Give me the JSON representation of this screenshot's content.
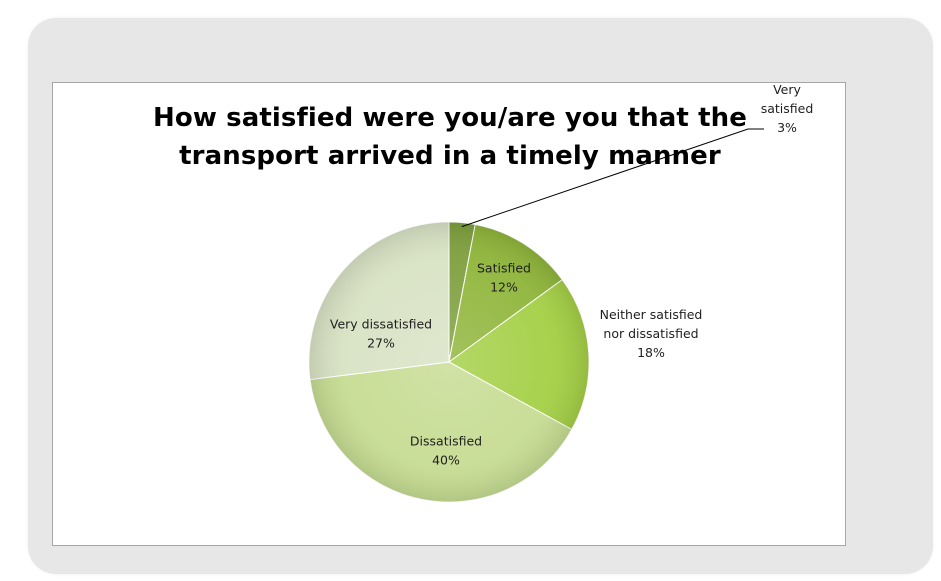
{
  "chart_data": {
    "type": "pie",
    "title": "How satisfied were you/are you that the transport arrived in a timely manner",
    "title_lines": [
      "How satisfied were you/are you that the",
      "transport arrived in a timely manner"
    ],
    "slices": [
      {
        "label": "Very satisfied",
        "label_lines": [
          "Very",
          "satisfied"
        ],
        "value": 3,
        "value_label": "3%",
        "color": "#7e9f3d"
      },
      {
        "label": "Satisfied",
        "label_lines": [
          "Satisfied"
        ],
        "value": 12,
        "value_label": "12%",
        "color": "#8fb53a"
      },
      {
        "label": "Neither satisfied nor dissatisfied",
        "label_lines": [
          "Neither satisfied",
          "nor dissatisfied"
        ],
        "value": 18,
        "value_label": "18%",
        "color": "#a4cf45"
      },
      {
        "label": "Dissatisfied",
        "label_lines": [
          "Dissatisfied"
        ],
        "value": 40,
        "value_label": "40%",
        "color": "#c6dc92"
      },
      {
        "label": "Very dissatisfied",
        "label_lines": [
          "Very dissatisfied"
        ],
        "value": 27,
        "value_label": "27%",
        "color": "#d8e2c3"
      }
    ],
    "legend": "none",
    "data_labels": "category-and-percent"
  }
}
